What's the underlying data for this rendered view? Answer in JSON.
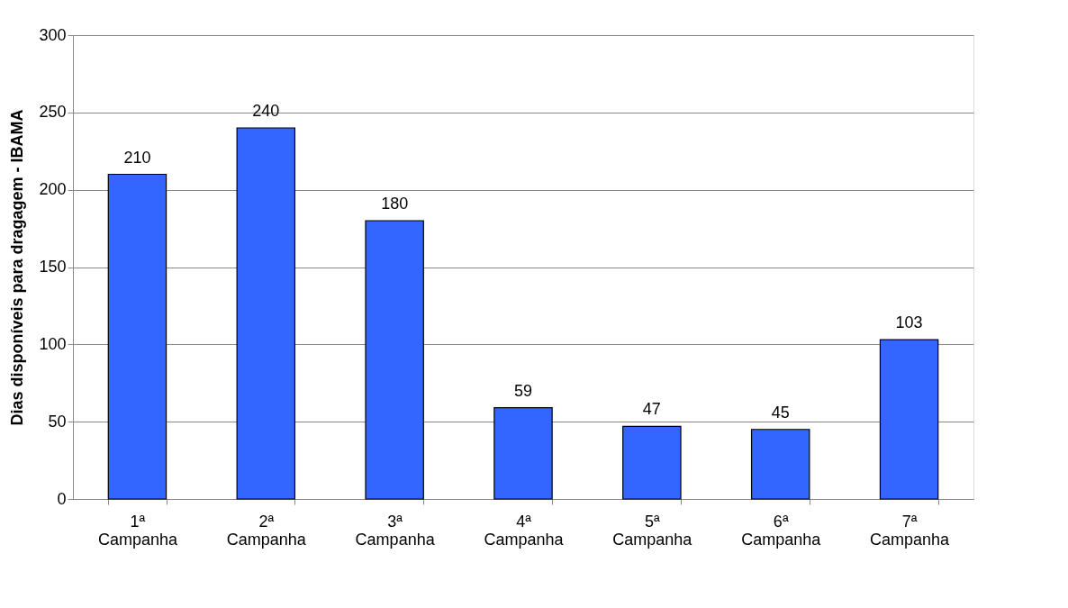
{
  "chart_data": {
    "type": "bar",
    "ylabel": "Dias disponíveis para dragagem - IBAMA",
    "categories": [
      "1ª Campanha",
      "2ª Campanha",
      "3ª Campanha",
      "4ª Campanha",
      "5ª Campanha",
      "6ª Campanha",
      "7ª Campanha"
    ],
    "values": [
      210,
      240,
      180,
      59,
      47,
      45,
      103
    ],
    "color": "#3366ff",
    "ylim": [
      0,
      300
    ],
    "yticks": [
      0,
      50,
      100,
      150,
      200,
      250,
      300
    ],
    "grid": "y",
    "data_labels": true
  }
}
